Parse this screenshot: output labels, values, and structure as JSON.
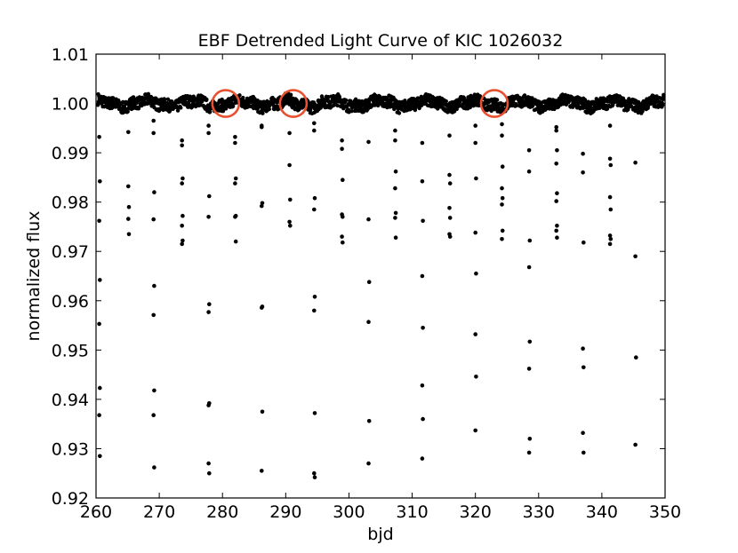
{
  "chart_data": {
    "type": "scatter",
    "title": "EBF Detrended Light Curve of KIC 1026032",
    "xlabel": "bjd",
    "ylabel": "normalized flux",
    "xlim": [
      260,
      350
    ],
    "ylim": [
      0.92,
      1.01
    ],
    "xticks": [
      "260",
      "270",
      "280",
      "290",
      "300",
      "310",
      "320",
      "330",
      "340",
      "350"
    ],
    "yticks": [
      "0.92",
      "0.93",
      "0.94",
      "0.95",
      "0.96",
      "0.97",
      "0.98",
      "0.99",
      "1.00",
      "1.01"
    ],
    "grid": false,
    "marker_color": "#000000",
    "highlight_color": "#e8502f",
    "baseline": {
      "x_start": 260.3,
      "x_end": 349.8,
      "y_center": 1.0,
      "y_scatter": 0.0012
    },
    "highlighted_regions": [
      {
        "x": 280.5,
        "y": 1.0
      },
      {
        "x": 291.2,
        "y": 1.0
      },
      {
        "x": 323.0,
        "y": 1.0
      }
    ],
    "transit_points": [
      {
        "x": 260.5,
        "y": 0.9932
      },
      {
        "x": 260.6,
        "y": 0.9842
      },
      {
        "x": 260.5,
        "y": 0.9762
      },
      {
        "x": 260.6,
        "y": 0.9642
      },
      {
        "x": 260.5,
        "y": 0.9553
      },
      {
        "x": 260.6,
        "y": 0.9423
      },
      {
        "x": 260.5,
        "y": 0.9368
      },
      {
        "x": 260.6,
        "y": 0.9285
      },
      {
        "x": 265.1,
        "y": 0.9942
      },
      {
        "x": 265.1,
        "y": 0.9832
      },
      {
        "x": 265.2,
        "y": 0.979
      },
      {
        "x": 265.1,
        "y": 0.9766
      },
      {
        "x": 265.2,
        "y": 0.9735
      },
      {
        "x": 269.1,
        "y": 0.9965
      },
      {
        "x": 269.1,
        "y": 0.994
      },
      {
        "x": 269.2,
        "y": 0.982
      },
      {
        "x": 269.1,
        "y": 0.9765
      },
      {
        "x": 269.2,
        "y": 0.963
      },
      {
        "x": 269.1,
        "y": 0.9571
      },
      {
        "x": 269.2,
        "y": 0.9418
      },
      {
        "x": 269.1,
        "y": 0.9368
      },
      {
        "x": 269.2,
        "y": 0.9262
      },
      {
        "x": 273.6,
        "y": 0.9925
      },
      {
        "x": 273.6,
        "y": 0.9915
      },
      {
        "x": 273.7,
        "y": 0.9848
      },
      {
        "x": 273.6,
        "y": 0.9838
      },
      {
        "x": 273.7,
        "y": 0.9772
      },
      {
        "x": 273.6,
        "y": 0.9752
      },
      {
        "x": 273.7,
        "y": 0.9722
      },
      {
        "x": 273.6,
        "y": 0.9715
      },
      {
        "x": 277.8,
        "y": 0.9955
      },
      {
        "x": 277.8,
        "y": 0.994
      },
      {
        "x": 277.9,
        "y": 0.9812
      },
      {
        "x": 277.8,
        "y": 0.977
      },
      {
        "x": 277.9,
        "y": 0.9593
      },
      {
        "x": 277.8,
        "y": 0.9577
      },
      {
        "x": 277.9,
        "y": 0.9392
      },
      {
        "x": 277.8,
        "y": 0.9388
      },
      {
        "x": 277.8,
        "y": 0.927
      },
      {
        "x": 277.9,
        "y": 0.925
      },
      {
        "x": 282.0,
        "y": 0.9932
      },
      {
        "x": 282.0,
        "y": 0.992
      },
      {
        "x": 282.1,
        "y": 0.9848
      },
      {
        "x": 282.0,
        "y": 0.9838
      },
      {
        "x": 282.1,
        "y": 0.9772
      },
      {
        "x": 282.0,
        "y": 0.977
      },
      {
        "x": 282.1,
        "y": 0.972
      },
      {
        "x": 286.2,
        "y": 0.9955
      },
      {
        "x": 286.2,
        "y": 0.9952
      },
      {
        "x": 286.3,
        "y": 0.9798
      },
      {
        "x": 286.2,
        "y": 0.9792
      },
      {
        "x": 286.3,
        "y": 0.9588
      },
      {
        "x": 286.2,
        "y": 0.9586
      },
      {
        "x": 286.3,
        "y": 0.9375
      },
      {
        "x": 286.2,
        "y": 0.9255
      },
      {
        "x": 290.6,
        "y": 0.994
      },
      {
        "x": 290.6,
        "y": 0.9875
      },
      {
        "x": 290.7,
        "y": 0.9805
      },
      {
        "x": 290.6,
        "y": 0.976
      },
      {
        "x": 290.7,
        "y": 0.9752
      },
      {
        "x": 294.5,
        "y": 0.996
      },
      {
        "x": 294.5,
        "y": 0.9945
      },
      {
        "x": 294.6,
        "y": 0.9808
      },
      {
        "x": 294.5,
        "y": 0.9785
      },
      {
        "x": 294.6,
        "y": 0.9608
      },
      {
        "x": 294.5,
        "y": 0.958
      },
      {
        "x": 294.6,
        "y": 0.9372
      },
      {
        "x": 294.5,
        "y": 0.925
      },
      {
        "x": 294.6,
        "y": 0.9242
      },
      {
        "x": 298.9,
        "y": 0.9925
      },
      {
        "x": 298.9,
        "y": 0.9908
      },
      {
        "x": 299.0,
        "y": 0.9845
      },
      {
        "x": 298.9,
        "y": 0.9775
      },
      {
        "x": 299.0,
        "y": 0.977
      },
      {
        "x": 298.9,
        "y": 0.973
      },
      {
        "x": 299.0,
        "y": 0.9718
      },
      {
        "x": 303.1,
        "y": 0.9922
      },
      {
        "x": 303.1,
        "y": 0.9765
      },
      {
        "x": 303.2,
        "y": 0.9638
      },
      {
        "x": 303.1,
        "y": 0.9557
      },
      {
        "x": 303.2,
        "y": 0.9356
      },
      {
        "x": 303.1,
        "y": 0.927
      },
      {
        "x": 307.3,
        "y": 0.9945
      },
      {
        "x": 307.3,
        "y": 0.9925
      },
      {
        "x": 307.4,
        "y": 0.9862
      },
      {
        "x": 307.3,
        "y": 0.9828
      },
      {
        "x": 307.4,
        "y": 0.9778
      },
      {
        "x": 307.3,
        "y": 0.9768
      },
      {
        "x": 307.4,
        "y": 0.9728
      },
      {
        "x": 311.6,
        "y": 0.992
      },
      {
        "x": 311.6,
        "y": 0.9842
      },
      {
        "x": 311.7,
        "y": 0.9762
      },
      {
        "x": 311.6,
        "y": 0.965
      },
      {
        "x": 311.7,
        "y": 0.9545
      },
      {
        "x": 311.6,
        "y": 0.9428
      },
      {
        "x": 311.7,
        "y": 0.936
      },
      {
        "x": 311.6,
        "y": 0.928
      },
      {
        "x": 315.9,
        "y": 0.9935
      },
      {
        "x": 315.9,
        "y": 0.9855
      },
      {
        "x": 316.0,
        "y": 0.9838
      },
      {
        "x": 315.9,
        "y": 0.9788
      },
      {
        "x": 316.0,
        "y": 0.9768
      },
      {
        "x": 315.9,
        "y": 0.9735
      },
      {
        "x": 316.0,
        "y": 0.973
      },
      {
        "x": 320.0,
        "y": 0.9955
      },
      {
        "x": 320.0,
        "y": 0.992
      },
      {
        "x": 320.1,
        "y": 0.9848
      },
      {
        "x": 320.0,
        "y": 0.9738
      },
      {
        "x": 320.1,
        "y": 0.9655
      },
      {
        "x": 320.0,
        "y": 0.9532
      },
      {
        "x": 320.1,
        "y": 0.9446
      },
      {
        "x": 320.0,
        "y": 0.9337
      },
      {
        "x": 324.2,
        "y": 0.9958
      },
      {
        "x": 324.2,
        "y": 0.9935
      },
      {
        "x": 324.3,
        "y": 0.9872
      },
      {
        "x": 324.2,
        "y": 0.9828
      },
      {
        "x": 324.3,
        "y": 0.9808
      },
      {
        "x": 324.2,
        "y": 0.9795
      },
      {
        "x": 324.3,
        "y": 0.9742
      },
      {
        "x": 324.2,
        "y": 0.9725
      },
      {
        "x": 328.5,
        "y": 0.9905
      },
      {
        "x": 328.5,
        "y": 0.9862
      },
      {
        "x": 328.6,
        "y": 0.9722
      },
      {
        "x": 328.5,
        "y": 0.9668
      },
      {
        "x": 328.6,
        "y": 0.9517
      },
      {
        "x": 328.5,
        "y": 0.9462
      },
      {
        "x": 328.6,
        "y": 0.932
      },
      {
        "x": 328.5,
        "y": 0.9292
      },
      {
        "x": 332.8,
        "y": 0.9952
      },
      {
        "x": 332.8,
        "y": 0.9945
      },
      {
        "x": 332.9,
        "y": 0.9905
      },
      {
        "x": 332.8,
        "y": 0.9878
      },
      {
        "x": 332.9,
        "y": 0.9818
      },
      {
        "x": 332.8,
        "y": 0.9802
      },
      {
        "x": 332.9,
        "y": 0.9752
      },
      {
        "x": 332.8,
        "y": 0.9742
      },
      {
        "x": 332.9,
        "y": 0.9728
      },
      {
        "x": 337.0,
        "y": 0.9898
      },
      {
        "x": 337.0,
        "y": 0.986
      },
      {
        "x": 337.1,
        "y": 0.9718
      },
      {
        "x": 337.0,
        "y": 0.9503
      },
      {
        "x": 337.1,
        "y": 0.9465
      },
      {
        "x": 337.0,
        "y": 0.9332
      },
      {
        "x": 337.1,
        "y": 0.9292
      },
      {
        "x": 341.3,
        "y": 0.9955
      },
      {
        "x": 341.3,
        "y": 0.9888
      },
      {
        "x": 341.4,
        "y": 0.9875
      },
      {
        "x": 341.3,
        "y": 0.981
      },
      {
        "x": 341.4,
        "y": 0.9785
      },
      {
        "x": 341.3,
        "y": 0.9732
      },
      {
        "x": 341.4,
        "y": 0.9725
      },
      {
        "x": 341.3,
        "y": 0.9715
      },
      {
        "x": 345.3,
        "y": 0.988
      },
      {
        "x": 345.3,
        "y": 0.969
      },
      {
        "x": 345.4,
        "y": 0.9485
      },
      {
        "x": 345.3,
        "y": 0.9308
      }
    ]
  }
}
